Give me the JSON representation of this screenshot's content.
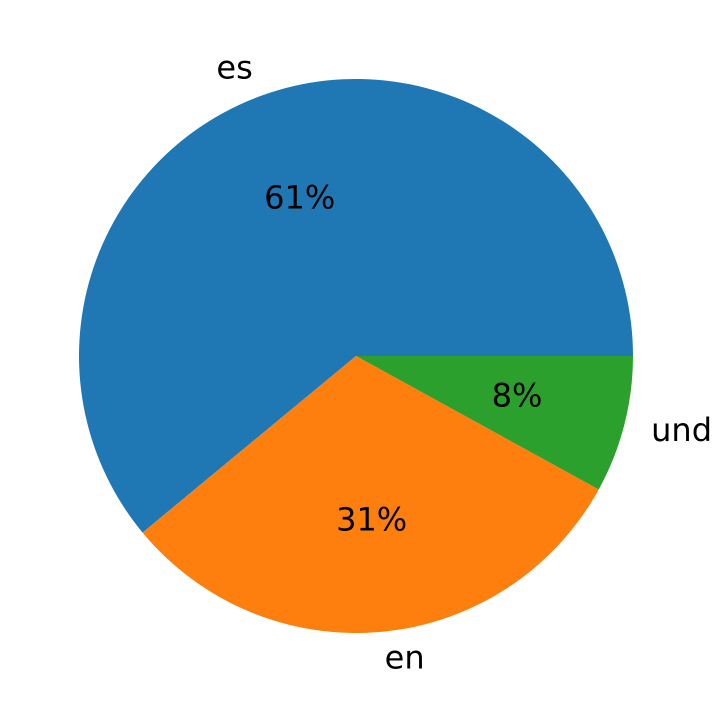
{
  "chart_data": {
    "type": "pie",
    "categories": [
      "es",
      "en",
      "und"
    ],
    "values": [
      61,
      31,
      8
    ],
    "value_labels": [
      "61%",
      "31%",
      "8%"
    ],
    "colors": [
      "#1f77b4",
      "#ff7f0e",
      "#2ca02c"
    ]
  }
}
